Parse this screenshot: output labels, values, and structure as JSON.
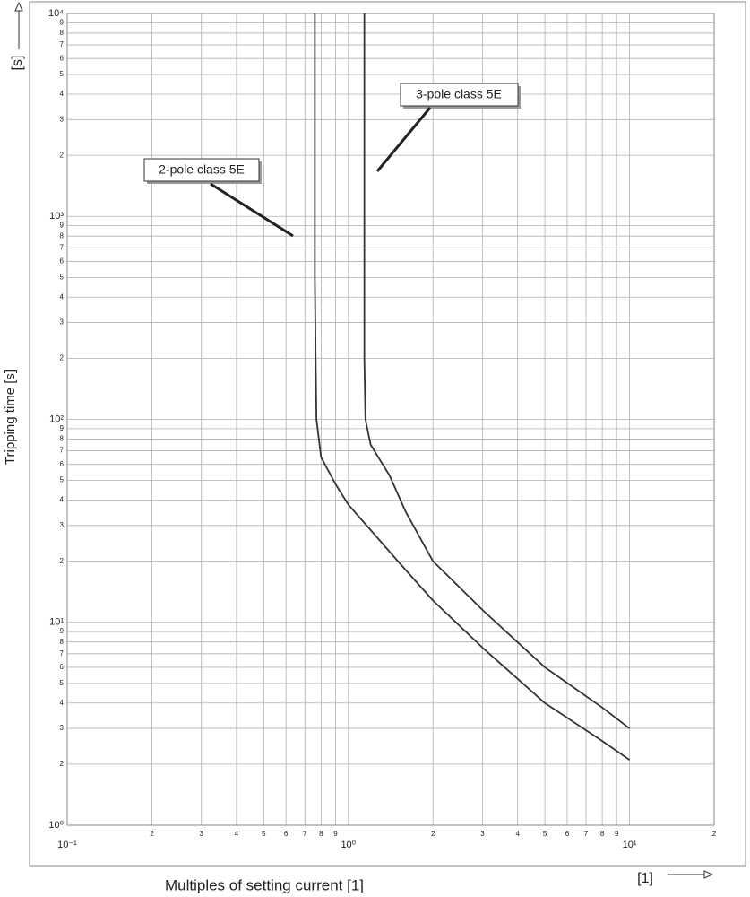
{
  "chart_data": {
    "type": "line",
    "y_label": "Tripping time [s]",
    "x_label": "Multiples of setting current [1]",
    "y_unit": "[s]",
    "x_unit": "[1]",
    "xscale": "log",
    "yscale": "log",
    "grid": true,
    "xlim": [
      0.1,
      20
    ],
    "ylim": [
      1,
      10000
    ],
    "xticks": [
      {
        "value": 0.1,
        "label": "10⁻¹"
      },
      {
        "value": 0.2,
        "label": "2"
      },
      {
        "value": 0.3,
        "label": "3"
      },
      {
        "value": 0.4,
        "label": "4"
      },
      {
        "value": 0.5,
        "label": "5"
      },
      {
        "value": 0.6,
        "label": "6"
      },
      {
        "value": 0.7,
        "label": "7"
      },
      {
        "value": 0.8,
        "label": "8"
      },
      {
        "value": 0.9,
        "label": "9"
      },
      {
        "value": 1,
        "label": "10⁰"
      },
      2,
      3,
      4,
      5,
      6,
      7,
      8,
      9,
      {
        "value": 10,
        "label": "10¹"
      },
      {
        "value": 20,
        "label": "2"
      }
    ],
    "yticks": [
      {
        "value": 1,
        "label": "10⁰"
      },
      2,
      3,
      4,
      5,
      6,
      7,
      8,
      9,
      {
        "value": 10,
        "label": "10¹"
      },
      {
        "value": 20,
        "label": "2"
      },
      {
        "value": 30,
        "label": "3"
      },
      {
        "value": 40,
        "label": "4"
      },
      {
        "value": 50,
        "label": "5"
      },
      {
        "value": 60,
        "label": "6"
      },
      {
        "value": 70,
        "label": "7"
      },
      {
        "value": 80,
        "label": "8"
      },
      {
        "value": 90,
        "label": "9"
      },
      {
        "value": 100,
        "label": "10²"
      },
      {
        "value": 200,
        "label": "2"
      },
      {
        "value": 300,
        "label": "3"
      },
      {
        "value": 400,
        "label": "4"
      },
      {
        "value": 500,
        "label": "5"
      },
      {
        "value": 600,
        "label": "6"
      },
      {
        "value": 700,
        "label": "7"
      },
      {
        "value": 800,
        "label": "8"
      },
      {
        "value": 900,
        "label": "9"
      },
      {
        "value": 1000,
        "label": "10³"
      },
      {
        "value": 2000,
        "label": "2"
      },
      {
        "value": 3000,
        "label": "3"
      },
      {
        "value": 4000,
        "label": "4"
      },
      {
        "value": 5000,
        "label": "5"
      },
      {
        "value": 6000,
        "label": "6"
      },
      {
        "value": 7000,
        "label": "7"
      },
      {
        "value": 8000,
        "label": "8"
      },
      {
        "value": 9000,
        "label": "9"
      },
      {
        "value": 10000,
        "label": "10⁴"
      }
    ],
    "series": [
      {
        "name": "2-pole class 5E",
        "color": "#333333",
        "x": [
          0.76,
          0.76,
          0.765,
          0.77,
          0.8,
          0.9,
          1.0,
          1.5,
          2,
          3,
          5,
          8,
          10
        ],
        "values": [
          10000,
          500,
          200,
          100,
          65,
          48,
          38,
          20,
          12.8,
          7.5,
          4.0,
          2.6,
          2.1
        ]
      },
      {
        "name": "3-pole class 5E",
        "color": "#333333",
        "x": [
          1.14,
          1.14,
          1.15,
          1.2,
          1.4,
          1.6,
          2,
          3,
          5,
          8,
          10
        ],
        "values": [
          10000,
          200,
          100,
          75,
          53,
          35,
          20,
          11.5,
          6,
          3.8,
          3.0
        ]
      }
    ]
  }
}
